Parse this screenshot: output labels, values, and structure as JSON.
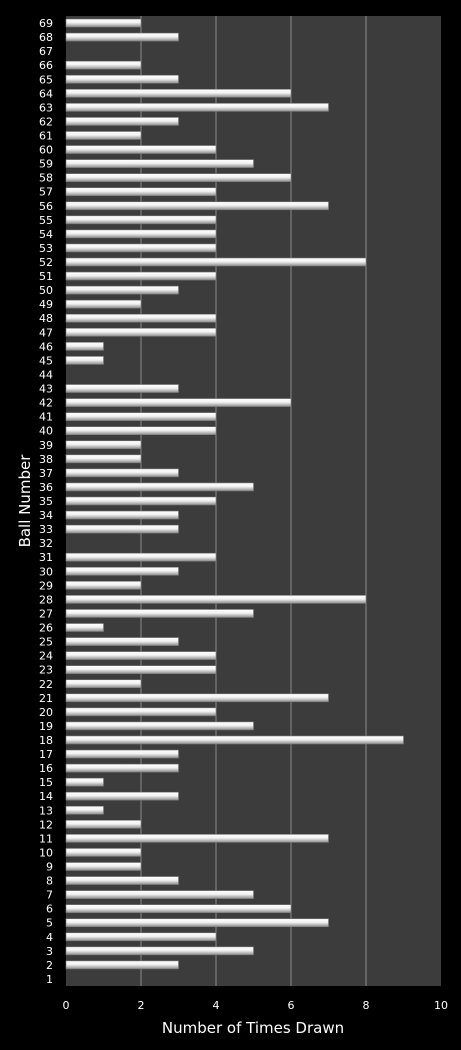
{
  "chart_data": {
    "type": "bar",
    "orientation": "horizontal",
    "xlabel": "Number of Times Drawn",
    "ylabel": "Ball Number",
    "xlim": [
      0,
      10
    ],
    "x_ticks": [
      0,
      2,
      4,
      6,
      8,
      10
    ],
    "grid": "vertical",
    "legend": "none",
    "colors": {
      "background": "#000000",
      "plot_area": "#3c3c3c",
      "gridline": "#8a8a8a",
      "bar": "#e6e6e6",
      "text": "#ffffff"
    },
    "categories": [
      "1",
      "2",
      "3",
      "4",
      "5",
      "6",
      "7",
      "8",
      "9",
      "10",
      "11",
      "12",
      "13",
      "14",
      "15",
      "16",
      "17",
      "18",
      "19",
      "20",
      "21",
      "22",
      "23",
      "24",
      "25",
      "26",
      "27",
      "28",
      "29",
      "30",
      "31",
      "32",
      "33",
      "34",
      "35",
      "36",
      "37",
      "38",
      "39",
      "40",
      "41",
      "42",
      "43",
      "44",
      "45",
      "46",
      "47",
      "48",
      "49",
      "50",
      "51",
      "52",
      "53",
      "54",
      "55",
      "56",
      "57",
      "58",
      "59",
      "60",
      "61",
      "62",
      "63",
      "64",
      "65",
      "66",
      "67",
      "68",
      "69"
    ],
    "values": [
      0,
      3,
      5,
      4,
      7,
      6,
      5,
      3,
      2,
      2,
      7,
      2,
      1,
      3,
      1,
      3,
      3,
      9,
      5,
      4,
      7,
      2,
      4,
      4,
      3,
      1,
      5,
      8,
      2,
      3,
      4,
      0,
      3,
      3,
      4,
      5,
      3,
      2,
      2,
      4,
      4,
      6,
      3,
      0,
      1,
      1,
      4,
      4,
      2,
      3,
      4,
      8,
      4,
      4,
      4,
      7,
      4,
      6,
      5,
      4,
      2,
      3,
      7,
      6,
      3,
      2,
      0,
      3,
      2
    ]
  }
}
